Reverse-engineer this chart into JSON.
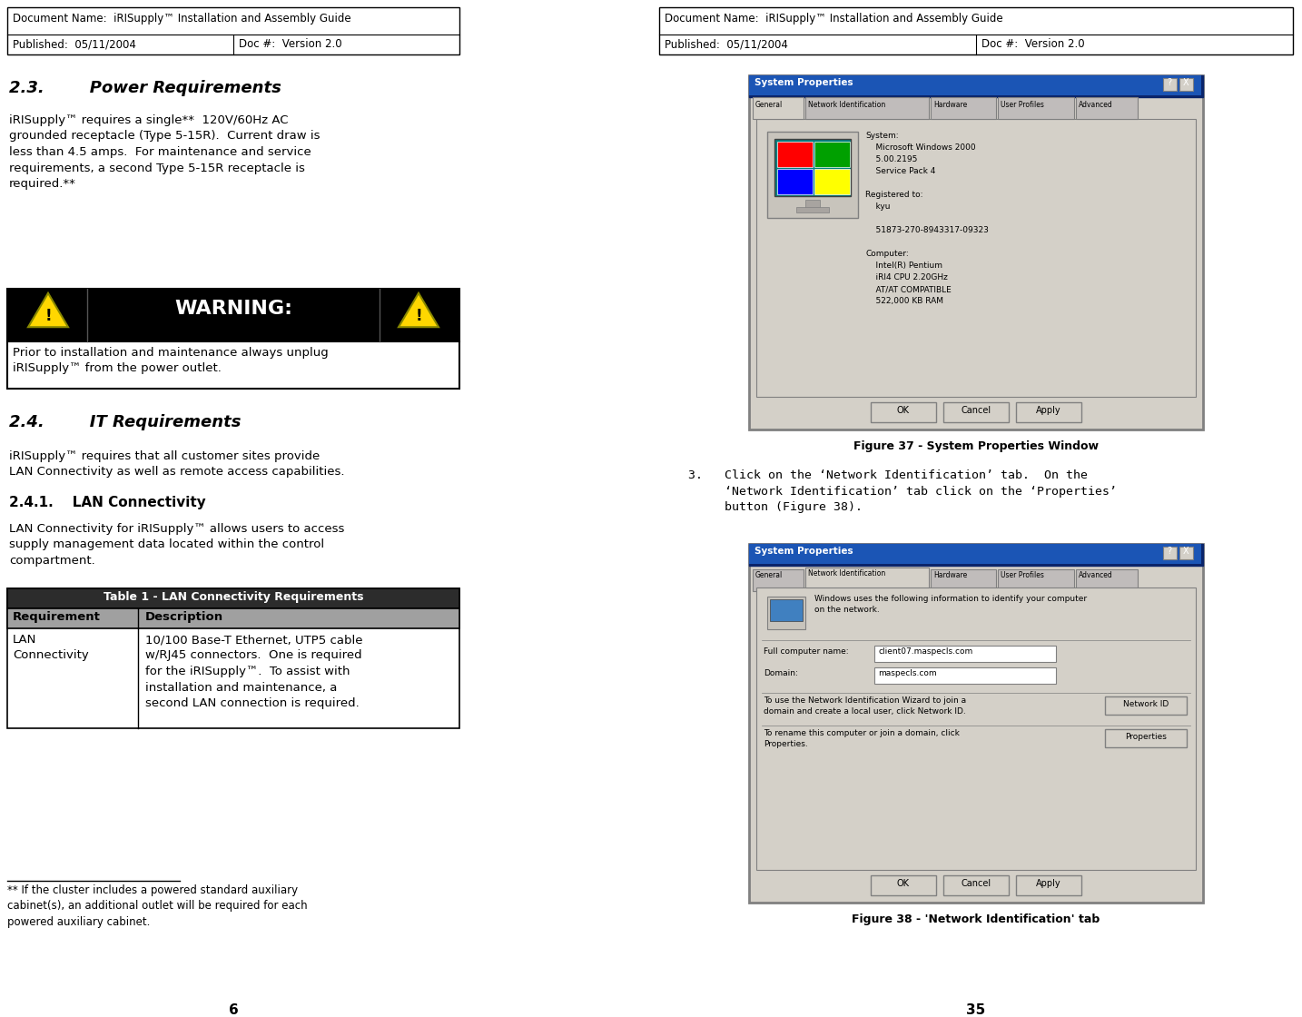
{
  "bg_color": "#ffffff",
  "header": {
    "doc_name": "Document Name:  iRISupply™ Installation and Assembly Guide",
    "published": "Published:  05/11/2004",
    "doc_num": "Doc #:  Version 2.0"
  },
  "section_23_title": "2.3.        Power Requirements",
  "section_23_body": "iRISupply™ requires a single**  120V/60Hz AC\ngrounded receptacle (Type 5-15R).  Current draw is\nless than 4.5 amps.  For maintenance and service\nrequirements, a second Type 5-15R receptacle is\nrequired.**",
  "warning_text": "WARNING:",
  "warning_body": "Prior to installation and maintenance always unplug\niRISupply™ from the power outlet.",
  "section_24_title": "2.4.        IT Requirements",
  "section_24_body": "iRISupply™ requires that all customer sites provide\nLAN Connectivity as well as remote access capabilities.",
  "section_241_title": "2.4.1.    LAN Connectivity",
  "section_241_body": "LAN Connectivity for iRISupply™ allows users to access\nsupply management data located within the control\ncompartment.",
  "table_title": "Table 1 - LAN Connectivity Requirements",
  "table_req_header": "Requirement",
  "table_desc_header": "Description",
  "table_req": "LAN\nConnectivity",
  "table_desc": "10/100 Base-T Ethernet, UTP5 cable\nw/RJ45 connectors.  One is required\nfor the iRISupply™.  To assist with\ninstallation and maintenance, a\nsecond LAN connection is required.",
  "footnote_line": "** If the cluster includes a powered standard auxiliary\ncabinet(s), an additional outlet will be required for each\npowered auxiliary cabinet.",
  "page_left": "6",
  "page_right": "35",
  "fig37_caption": "Figure 37 - System Properties Window",
  "fig38_caption": "Figure 38 - 'Network Identification' tab",
  "right_step3": "3.   Click on the ‘Network Identification’ tab.  On the\n     ‘Network Identification’ tab click on the ‘Properties’\n     button (Figure 38).",
  "fig37_sys_info": [
    "System:",
    "    Microsoft Windows 2000",
    "    5.00.2195",
    "    Service Pack 4",
    "",
    "Registered to:",
    "    kyu",
    "",
    "    51873-270-8943317-09323",
    "",
    "Computer:",
    "    Intel(R) Pentium",
    "    iRI4 CPU 2.20GHz",
    "    AT/AT COMPATIBLE",
    "    522,000 KB RAM"
  ],
  "fig38_content": {
    "info_text": "Windows uses the following information to identify your computer\non the network.",
    "full_name_label": "Full computer name:",
    "full_name_val": "client07.maspecls.com",
    "domain_label": "Domain:",
    "domain_val": "maspecls.com",
    "network_id_text": "To use the Network Identification Wizard to join a\ndomain and create a local user, click Network ID.",
    "network_id_btn": "Network ID",
    "props_text": "To rename this computer or join a domain, click\nProperties.",
    "props_btn": "Properties"
  }
}
